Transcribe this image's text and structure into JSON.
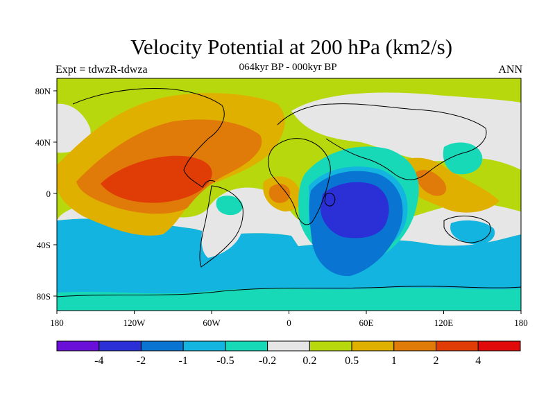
{
  "title": "Velocity Potential at 200 hPa (km2/s)",
  "subtitle": "064kyr BP - 000kyr BP",
  "left_label": "Expt = tdwzR-tdwza",
  "right_label": "ANN",
  "map": {
    "lat_ticks": [
      "80N",
      "40N",
      "0",
      "40S",
      "80S"
    ],
    "lon_ticks": [
      "180",
      "120W",
      "60W",
      "0",
      "60E",
      "120E",
      "180"
    ]
  },
  "colorbar": {
    "colors": [
      "#6a0fd8",
      "#2b2fd6",
      "#0a74d2",
      "#14b4e0",
      "#17d9b8",
      "#e6e6e6",
      "#b8d80e",
      "#e0b000",
      "#e07a08",
      "#e03c06",
      "#e00a0a"
    ],
    "labels": [
      "-4",
      "-2",
      "-1",
      "-0.5",
      "-0.2",
      "0.2",
      "0.5",
      "1",
      "2",
      "4"
    ]
  }
}
